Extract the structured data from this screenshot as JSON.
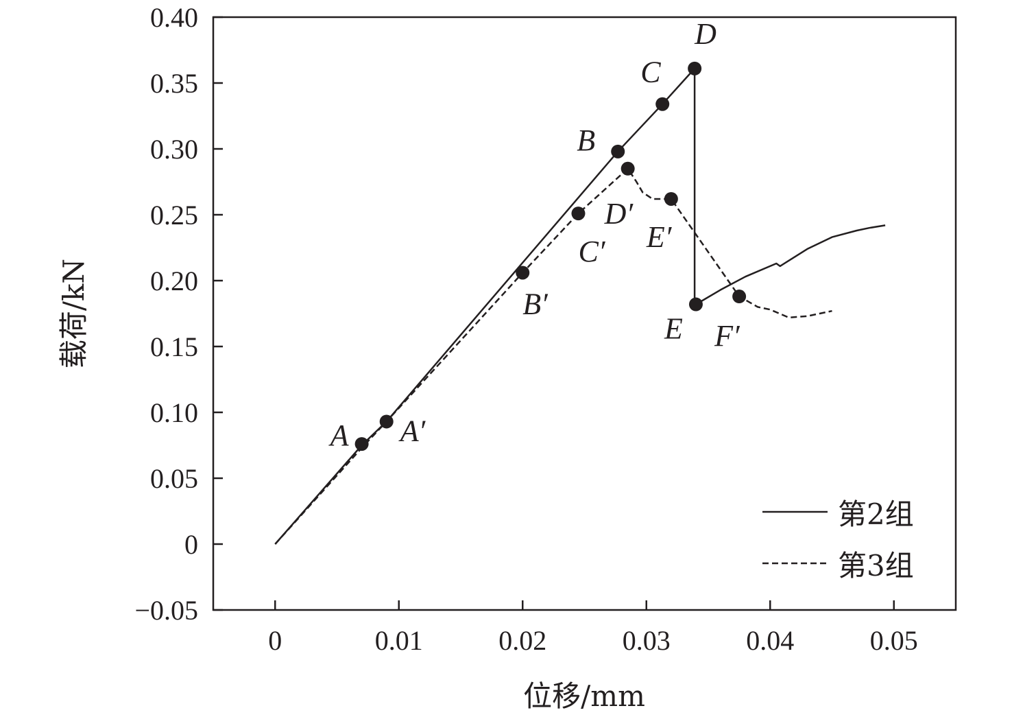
{
  "chart_data": {
    "type": "line",
    "xlabel": "位移/mm",
    "ylabel": "载荷/kN",
    "xlim": [
      -0.005,
      0.055
    ],
    "ylim": [
      -0.05,
      0.4
    ],
    "x_ticks": [
      0,
      0.01,
      0.02,
      0.03,
      0.04,
      0.05
    ],
    "x_tick_labels": [
      "0",
      "0.01",
      "0.02",
      "0.03",
      "0.04",
      "0.05"
    ],
    "y_ticks": [
      -0.05,
      0,
      0.05,
      0.1,
      0.15,
      0.2,
      0.25,
      0.3,
      0.35,
      0.4
    ],
    "y_tick_labels": [
      "−0.05",
      "0",
      "0.05",
      "0.10",
      "0.15",
      "0.20",
      "0.25",
      "0.30",
      "0.35",
      "0.40"
    ],
    "grid": false,
    "legend_position": "bottom-right",
    "series": [
      {
        "name": "第2组",
        "style": "solid",
        "color": "#231f20",
        "x": [
          0,
          0.007,
          0.009,
          0.0277,
          0.0313,
          0.0339,
          0.0339,
          0.034,
          0.036,
          0.038,
          0.0405,
          0.0408,
          0.043,
          0.045,
          0.047,
          0.048,
          0.0493
        ],
        "y": [
          0,
          0.075,
          0.093,
          0.298,
          0.334,
          0.361,
          0.181,
          0.182,
          0.193,
          0.203,
          0.213,
          0.211,
          0.224,
          0.233,
          0.238,
          0.24,
          0.242
        ]
      },
      {
        "name": "第3组",
        "style": "dashed",
        "color": "#231f20",
        "x": [
          0,
          0.007,
          0.009,
          0.02,
          0.0245,
          0.0285,
          0.0292,
          0.0297,
          0.0305,
          0.032,
          0.0375,
          0.039,
          0.04,
          0.041,
          0.0415,
          0.043,
          0.045
        ],
        "y": [
          0,
          0.073,
          0.093,
          0.206,
          0.251,
          0.285,
          0.275,
          0.267,
          0.262,
          0.262,
          0.188,
          0.18,
          0.178,
          0.174,
          0.172,
          0.173,
          0.177
        ]
      }
    ],
    "markers": [
      {
        "label": "A",
        "x": 0.007,
        "y": 0.076
      },
      {
        "label": "A′",
        "x": 0.009,
        "y": 0.093
      },
      {
        "label": "B′",
        "x": 0.02,
        "y": 0.206
      },
      {
        "label": "C′",
        "x": 0.0245,
        "y": 0.251
      },
      {
        "label": "B",
        "x": 0.0277,
        "y": 0.298
      },
      {
        "label": "D′",
        "x": 0.0285,
        "y": 0.285
      },
      {
        "label": "C",
        "x": 0.0313,
        "y": 0.334
      },
      {
        "label": "E′",
        "x": 0.032,
        "y": 0.262
      },
      {
        "label": "D",
        "x": 0.0339,
        "y": 0.361
      },
      {
        "label": "E",
        "x": 0.034,
        "y": 0.182
      },
      {
        "label": "F′",
        "x": 0.0375,
        "y": 0.188
      }
    ]
  }
}
